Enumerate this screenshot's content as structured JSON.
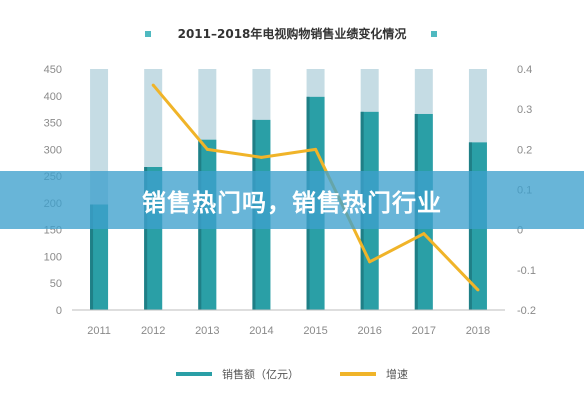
{
  "chart_data": {
    "type": "bar",
    "title": "2011–2018年电视购物销售业绩变化情况",
    "categories": [
      "2011",
      "2012",
      "2013",
      "2014",
      "2015",
      "2016",
      "2017",
      "2018"
    ],
    "series": [
      {
        "name": "销售额（亿元）",
        "type": "bar",
        "axis": "left",
        "values": [
          197,
          267,
          318,
          355,
          398,
          370,
          366,
          313
        ]
      },
      {
        "name": "增速",
        "type": "line",
        "axis": "right",
        "values": [
          null,
          0.36,
          0.2,
          0.18,
          0.2,
          -0.08,
          -0.01,
          -0.15
        ]
      }
    ],
    "background_bar_value": 450,
    "ylim_left": [
      0,
      450
    ],
    "yticks_left": [
      "0",
      "50",
      "100",
      "150",
      "200",
      "250",
      "300",
      "350",
      "400",
      "450"
    ],
    "ylim_right": [
      -0.2,
      0.4
    ],
    "yticks_right": [
      "-0.2",
      "-0.1",
      "0",
      "0.1",
      "0.2",
      "0.3",
      "0.4"
    ],
    "grid": false,
    "legend_position": "bottom",
    "colors": {
      "bar": "#2a9fa6",
      "bar_background": "#c5dce4",
      "line": "#f0b429",
      "title_marker": "#4fb9c0"
    }
  },
  "banner": {
    "text": "销售热门吗，销售热门行业"
  }
}
